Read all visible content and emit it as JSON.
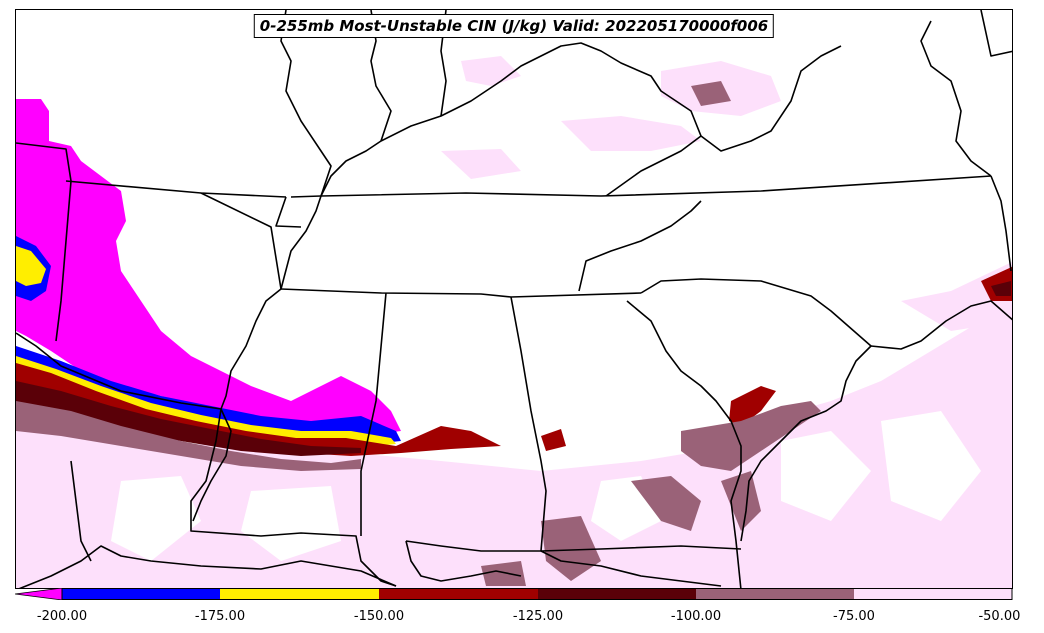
{
  "title": "0-255mb Most-Unstable CIN (J/kg) Valid: 202205170000f006",
  "colorbar": {
    "ticks": [
      "-200.00",
      "-175.00",
      "-150.00",
      "-125.00",
      "-100.00",
      "-75.00",
      "-50.00"
    ],
    "bins": [
      {
        "range": "< -200",
        "color": "#ff00ff"
      },
      {
        "range": "-200 to -175",
        "color": "#0000ff"
      },
      {
        "range": "-175 to -150",
        "color": "#ffee00"
      },
      {
        "range": "-150 to -125",
        "color": "#a00000"
      },
      {
        "range": "-125 to -100",
        "color": "#5a0008"
      },
      {
        "range": "-100 to -75",
        "color": "#9a6278"
      },
      {
        "range": "-75 to -50",
        "color": "#fde0fb"
      }
    ]
  },
  "colors": {
    "magenta": "#ff00ff",
    "blue": "#0000ff",
    "yellow": "#ffee00",
    "red": "#a00000",
    "darkred": "#5a0008",
    "mauve": "#9a6278",
    "lightpink": "#fde0fb",
    "boundary": "#000000"
  }
}
